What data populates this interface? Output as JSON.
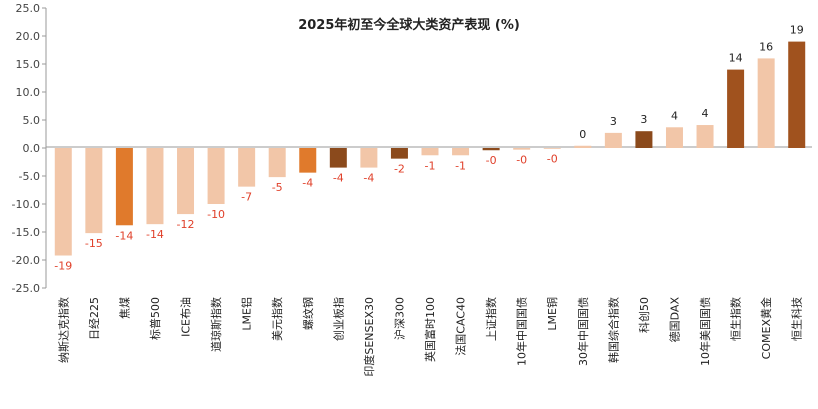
{
  "chart_data": {
    "type": "bar",
    "title": "2025年初至今全球大类资产表现 (%)",
    "xlabel": "",
    "ylabel": "",
    "ylim": [
      -25,
      25
    ],
    "ytick_step": 5,
    "yticks": [
      "25.0",
      "20.0",
      "15.0",
      "10.0",
      "5.0",
      "0.0",
      "-5.0",
      "-10.0",
      "-15.0",
      "-20.0",
      "-25.0"
    ],
    "categories": [
      "纳斯达克指数",
      "日经225",
      "焦煤",
      "标普500",
      "ICE布油",
      "道琼斯指数",
      "LME铝",
      "美元指数",
      "螺纹钢",
      "创业板指",
      "印度SENSEX30",
      "沪深300",
      "英国富时100",
      "法国CAC40",
      "上证指数",
      "10年中国国债",
      "LME铜",
      "30年中国国债",
      "韩国综合指数",
      "科创50",
      "德国DAX",
      "10年美国国债",
      "恒生指数",
      "COMEX黄金",
      "恒生科技"
    ],
    "values": [
      -19.2,
      -15.2,
      -13.8,
      -13.6,
      -11.8,
      -10.0,
      -6.9,
      -5.2,
      -4.4,
      -3.5,
      -3.5,
      -1.9,
      -1.3,
      -1.3,
      -0.4,
      -0.3,
      -0.1,
      0.4,
      2.7,
      3.0,
      3.7,
      4.1,
      14.0,
      16.0,
      19.0
    ],
    "data_labels": [
      "-19",
      "-15",
      "-14",
      "-14",
      "-12",
      "-10",
      "-7",
      "-5",
      "-4",
      "-4",
      "-4",
      "-2",
      "-1",
      "-1",
      "-0",
      "-0",
      "-0",
      "0",
      "3",
      "3",
      "4",
      "4",
      "14",
      "16",
      "19"
    ],
    "bar_colors": [
      "#f2c6a8",
      "#f2c6a8",
      "#e07a2c",
      "#f2c6a8",
      "#f2c6a8",
      "#f2c6a8",
      "#f2c6a8",
      "#f2c6a8",
      "#e07a2c",
      "#8b4a1c",
      "#f2c6a8",
      "#8b4a1c",
      "#f2c6a8",
      "#f2c6a8",
      "#8b4a1c",
      "#f2c6a8",
      "#f2c6a8",
      "#f2c6a8",
      "#f2c6a8",
      "#8b4a1c",
      "#f2c6a8",
      "#f2c6a8",
      "#a0521e",
      "#f2c6a8",
      "#a0521e"
    ],
    "negative_label_color": "#e0402a",
    "positive_label_color": "#222222",
    "grid": false,
    "legend": "none"
  }
}
